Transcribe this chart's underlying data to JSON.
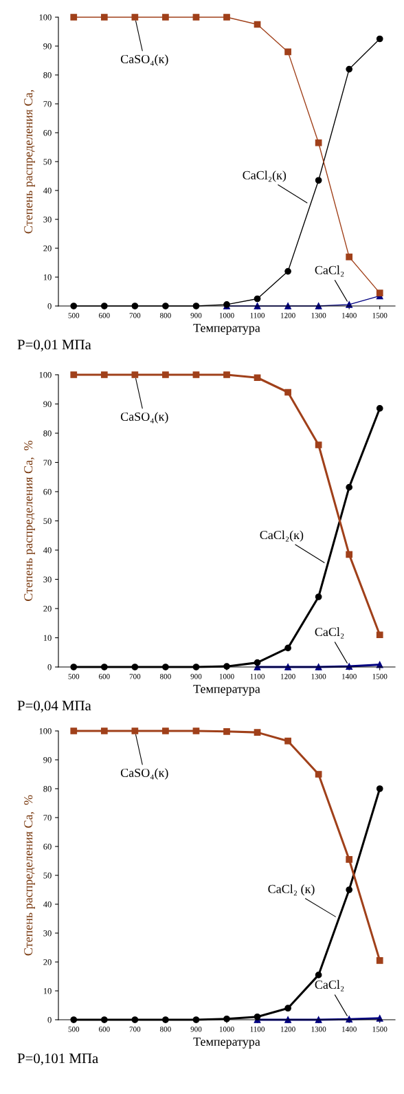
{
  "chart_data": [
    {
      "type": "line",
      "xlabel": "Температура",
      "ylabel": "Степень распределения Ca,",
      "categories": [
        "500",
        "600",
        "700",
        "800",
        "900",
        "1000",
        "1100",
        "1200",
        "1300",
        "1400",
        "1500"
      ],
      "ylim": [
        0,
        100
      ],
      "yticks": [
        0,
        10,
        20,
        30,
        40,
        50,
        60,
        70,
        80,
        90,
        100
      ],
      "grid": false,
      "legend": false,
      "line_style": "solid",
      "annotations": [
        "P=0,01 МПа"
      ],
      "series": [
        {
          "name": "CaSO₄(к)",
          "color": "#a0401a",
          "marker": "square",
          "values": [
            100,
            100,
            100,
            100,
            100,
            100,
            97.5,
            88,
            56.5,
            17,
            4.5
          ]
        },
        {
          "name": "CaCl₂(к)",
          "color": "#000000",
          "marker": "circle",
          "values": [
            0,
            0,
            0,
            0,
            0,
            0.5,
            2.5,
            12,
            43.5,
            82,
            92.5
          ]
        },
        {
          "name": "CaCl₂",
          "color": "#000080",
          "marker": "triangle",
          "values": [
            null,
            null,
            null,
            null,
            null,
            0,
            0,
            0,
            0,
            0.5,
            3.5
          ]
        }
      ]
    },
    {
      "type": "line",
      "xlabel": "Температура",
      "ylabel": "Степень распределения Ca,  %",
      "categories": [
        "500",
        "600",
        "700",
        "800",
        "900",
        "1000",
        "1100",
        "1200",
        "1300",
        "1400",
        "1500"
      ],
      "ylim": [
        0,
        100
      ],
      "yticks": [
        0,
        10,
        20,
        30,
        40,
        50,
        60,
        70,
        80,
        90,
        100
      ],
      "grid": false,
      "legend": false,
      "line_style": "solid",
      "annotations": [
        "P=0,04 МПа"
      ],
      "series": [
        {
          "name": "CaSO₄(к)",
          "color": "#a0401a",
          "marker": "square",
          "values": [
            100,
            100,
            100,
            100,
            100,
            100,
            99,
            94,
            76,
            38.5,
            11
          ]
        },
        {
          "name": "CaCl₂(к)",
          "color": "#000000",
          "marker": "circle",
          "values": [
            0,
            0,
            0,
            0,
            0,
            0.2,
            1.5,
            6.5,
            24,
            61.5,
            88.5
          ]
        },
        {
          "name": "CaCl₂",
          "color": "#000080",
          "marker": "triangle",
          "values": [
            null,
            null,
            null,
            null,
            null,
            null,
            0,
            0,
            0,
            0.2,
            0.8
          ]
        }
      ]
    },
    {
      "type": "line",
      "xlabel": "Температура",
      "ylabel": "Степень распределения Ca,  %",
      "categories": [
        "500",
        "600",
        "700",
        "800",
        "900",
        "1000",
        "1100",
        "1200",
        "1300",
        "1400",
        "1500"
      ],
      "ylim": [
        0,
        100
      ],
      "yticks": [
        0,
        10,
        20,
        30,
        40,
        50,
        60,
        70,
        80,
        90,
        100
      ],
      "grid": false,
      "legend": false,
      "line_style": "solid",
      "annotations": [
        "P=0,101 МПа"
      ],
      "series": [
        {
          "name": "CaSO₄(к)",
          "color": "#a0401a",
          "marker": "square",
          "values": [
            100,
            100,
            100,
            100,
            100,
            99.8,
            99.5,
            96.5,
            85,
            55.5,
            20.5
          ]
        },
        {
          "name": "CaCl₂ (к)",
          "color": "#000000",
          "marker": "circle",
          "values": [
            0,
            0,
            0,
            0,
            0,
            0.3,
            1,
            4,
            15.5,
            45,
            80
          ]
        },
        {
          "name": "CaCl₂",
          "color": "#000080",
          "marker": "triangle",
          "values": [
            null,
            null,
            null,
            null,
            null,
            null,
            0,
            0,
            0,
            0.2,
            0.5
          ]
        }
      ]
    }
  ]
}
